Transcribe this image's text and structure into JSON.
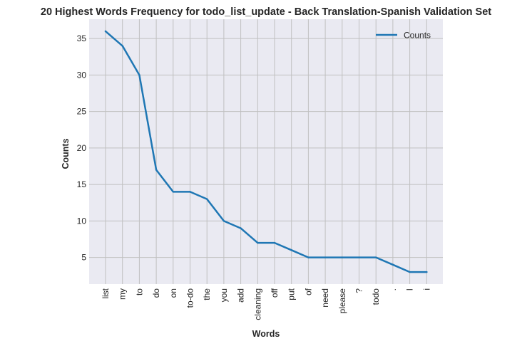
{
  "chart_data": {
    "type": "line",
    "title": "20 Highest Words Frequency for todo_list_update - Back Translation-Spanish Validation Set",
    "xlabel": "Words",
    "ylabel": "Counts",
    "categories": [
      "list",
      "my",
      "to",
      "do",
      "on",
      "to-do",
      "the",
      "you",
      "add",
      "cleaning",
      "off",
      "put",
      "of",
      "need",
      "please",
      "?",
      "todo",
      ".",
      "I",
      "i"
    ],
    "series": [
      {
        "name": "Counts",
        "values": [
          36,
          34,
          30,
          17,
          14,
          14,
          13,
          10,
          9,
          7,
          7,
          6,
          5,
          5,
          5,
          5,
          5,
          4,
          3,
          3
        ]
      }
    ],
    "ylim": [
      1.35,
      37.65
    ],
    "yticks": [
      5,
      10,
      15,
      20,
      25,
      30,
      35
    ],
    "grid": true,
    "legend_position": "top-right",
    "colors": {
      "line": "#1f77b4",
      "plot_background": "#eaeaf2",
      "grid": "#c0c0c0",
      "text": "#262626"
    }
  }
}
